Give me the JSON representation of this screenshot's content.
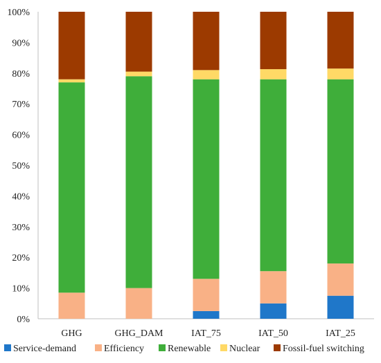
{
  "chart_data": {
    "type": "bar",
    "stacked": true,
    "normalized": true,
    "categories": [
      "GHG",
      "GHG_DAM",
      "IAT_75",
      "IAT_50",
      "IAT_25"
    ],
    "y_tick_labels": [
      "0%",
      "10%",
      "20%",
      "30%",
      "40%",
      "50%",
      "60%",
      "70%",
      "80%",
      "90%",
      "100%"
    ],
    "ylim": [
      0,
      100
    ],
    "grid": false,
    "legend_position": "bottom",
    "series": [
      {
        "name": "Service-demand",
        "color": "#1f77c9",
        "values": [
          0,
          0,
          2.5,
          5,
          7.5
        ]
      },
      {
        "name": "Efficiency",
        "color": "#f9b186",
        "values": [
          8.5,
          10,
          10.5,
          10.5,
          10.5
        ]
      },
      {
        "name": "Renewable",
        "color": "#3fae3a",
        "values": [
          68.5,
          69,
          65,
          62.5,
          60
        ]
      },
      {
        "name": "Nuclear",
        "color": "#ffd966",
        "values": [
          1,
          1.5,
          3,
          3.3,
          3.5
        ]
      },
      {
        "name": "Fossil-fuel switching",
        "color": "#9c3a00",
        "values": [
          22,
          19.5,
          19,
          18.7,
          18.5
        ]
      }
    ]
  }
}
